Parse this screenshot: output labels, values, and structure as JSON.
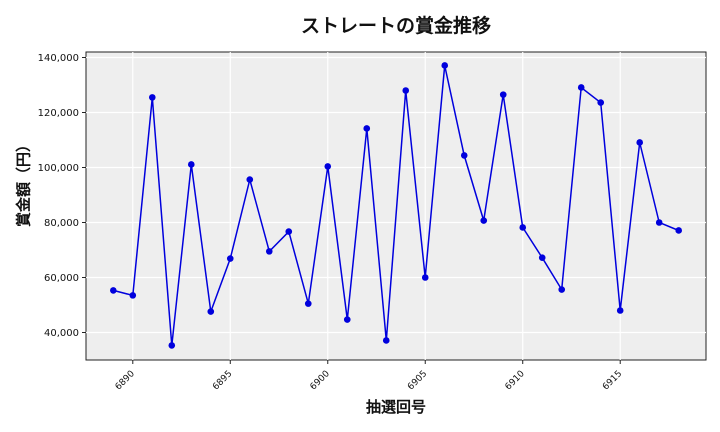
{
  "chart_data": {
    "type": "line",
    "title": "ストレートの賞金推移",
    "xlabel": "抽選回号",
    "ylabel": "賞金額（円）",
    "x": [
      6889,
      6890,
      6891,
      6892,
      6893,
      6894,
      6895,
      6896,
      6897,
      6898,
      6899,
      6900,
      6901,
      6902,
      6903,
      6904,
      6905,
      6906,
      6907,
      6908,
      6909,
      6910,
      6911,
      6912,
      6913,
      6914,
      6915,
      6916,
      6917,
      6918
    ],
    "series": [
      {
        "name": "ストレート",
        "color": "#0000dd",
        "values": [
          55300,
          53500,
          125500,
          35300,
          101100,
          47600,
          66900,
          95600,
          69500,
          76700,
          50500,
          100400,
          44700,
          114200,
          37100,
          128000,
          60000,
          137100,
          104400,
          80700,
          126500,
          78200,
          67200,
          55600,
          129100,
          123600,
          48000,
          109100,
          80000,
          77100
        ]
      }
    ],
    "xticks": [
      6890,
      6895,
      6900,
      6905,
      6910,
      6915
    ],
    "xtick_labels": [
      "6890",
      "6895",
      "6900",
      "6905",
      "6910",
      "6915"
    ],
    "yticks": [
      40000,
      60000,
      80000,
      100000,
      120000,
      140000
    ],
    "ytick_labels": [
      "40,000",
      "60,000",
      "80,000",
      "100,000",
      "120,000",
      "140,000"
    ],
    "xlim": [
      6887.6,
      6919.4
    ],
    "ylim": [
      30000,
      142000
    ],
    "grid": true,
    "legend": null,
    "background": "#eeeeee"
  }
}
